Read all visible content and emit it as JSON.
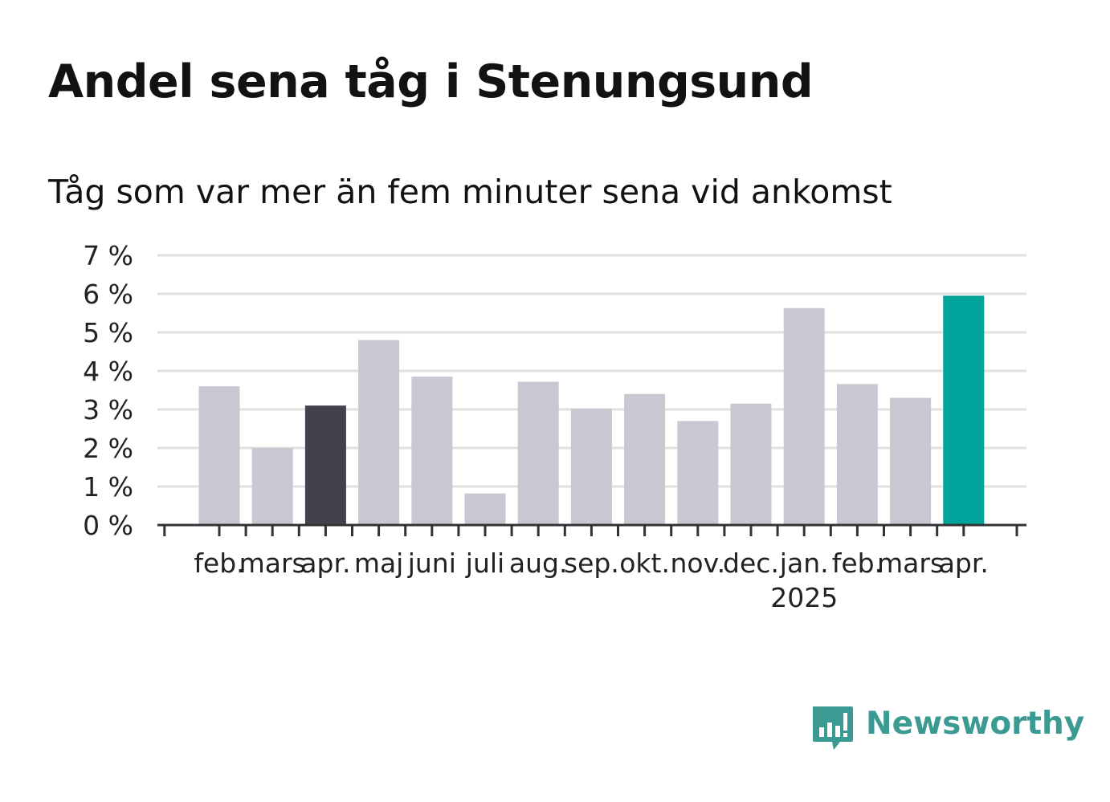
{
  "header": {
    "title": "Andel sena tåg i Stenungsund",
    "subtitle": "Tåg som var mer än fem minuter sena vid ankomst"
  },
  "brand": {
    "name": "Newsworthy",
    "color": "#3b9a92",
    "icon": "chart-speech-bubble-icon"
  },
  "colors": {
    "default_bar": "#c8c7d2",
    "highlight_previous_year": "#42414d",
    "highlight_latest": "#00a39a",
    "grid": "#e0e0e0",
    "axis": "#333333"
  },
  "chart_data": {
    "type": "bar",
    "categories": [
      "feb.",
      "mars",
      "apr.",
      "maj",
      "juni",
      "juli",
      "aug.",
      "sep.",
      "okt.",
      "nov.",
      "dec.",
      "jan.",
      "feb.",
      "mars",
      "apr."
    ],
    "year_labels": [
      {
        "index": 11,
        "label": "2025"
      }
    ],
    "values": [
      3.6,
      2.0,
      3.1,
      4.8,
      3.85,
      0.82,
      3.72,
      3.02,
      3.4,
      2.7,
      3.15,
      5.63,
      3.66,
      3.3,
      5.95
    ],
    "highlight": {
      "2": "highlight_previous_year",
      "14": "highlight_latest"
    },
    "y_ticks": [
      {
        "value": 0,
        "label": "0 %"
      },
      {
        "value": 1,
        "label": "1 %"
      },
      {
        "value": 2,
        "label": "2 %"
      },
      {
        "value": 3,
        "label": "3 %"
      },
      {
        "value": 4,
        "label": "4 %"
      },
      {
        "value": 5,
        "label": "5 %"
      },
      {
        "value": 6,
        "label": "6 %"
      },
      {
        "value": 7,
        "label": "7 %"
      }
    ],
    "ylim": [
      0,
      7
    ],
    "grid": true,
    "unit": "%"
  }
}
